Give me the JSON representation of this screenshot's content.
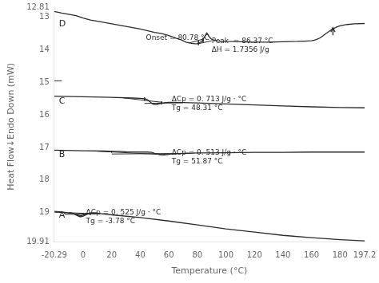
{
  "chart_data": {
    "type": "line",
    "xlabel": "Temperature (°C)",
    "ylabel": "Heat Flow↓Endo Down (mW)",
    "color": "#2a2a2a",
    "grid": false,
    "xlim": [
      -20.29,
      197.2
    ],
    "ylim": [
      19.91,
      12.81
    ],
    "xticks": [
      -20.29,
      0,
      20,
      40,
      60,
      80,
      100,
      120,
      140,
      160,
      180,
      197.2
    ],
    "yticks": [
      12.81,
      13,
      14,
      15,
      16,
      17,
      18,
      19,
      19.91
    ],
    "series": [
      {
        "x": [
          -20.29,
          -15,
          -5,
          0,
          5,
          10,
          20,
          30,
          40,
          50,
          55,
          60,
          65,
          68,
          70,
          72,
          74,
          76,
          78,
          80,
          82,
          83,
          84,
          85,
          86,
          86.5,
          87,
          88,
          90,
          95,
          100,
          110,
          120,
          130,
          140,
          150,
          155,
          160,
          162,
          164,
          166,
          168,
          170,
          172,
          174,
          176,
          178,
          180,
          185,
          190,
          197.2
        ],
        "values": [
          12.82,
          12.87,
          12.95,
          13.02,
          13.08,
          13.12,
          13.2,
          13.28,
          13.36,
          13.46,
          13.5,
          13.56,
          13.64,
          13.68,
          13.72,
          13.76,
          13.78,
          13.8,
          13.81,
          13.81,
          13.77,
          13.74,
          13.68,
          13.6,
          13.52,
          13.48,
          13.5,
          13.58,
          13.68,
          13.73,
          13.74,
          13.75,
          13.76,
          13.76,
          13.75,
          13.74,
          13.73,
          13.72,
          13.7,
          13.67,
          13.63,
          13.57,
          13.5,
          13.44,
          13.38,
          13.33,
          13.29,
          13.26,
          13.22,
          13.2,
          13.19
        ]
      },
      {
        "x": [
          -20.29,
          0,
          20,
          35,
          40,
          43,
          45,
          47,
          48,
          49,
          50,
          52,
          54,
          56,
          58,
          60,
          70,
          80,
          100,
          120,
          140,
          160,
          180,
          197.2
        ],
        "values": [
          15.42,
          15.44,
          15.46,
          15.48,
          15.49,
          15.5,
          15.53,
          15.6,
          15.64,
          15.67,
          15.68,
          15.67,
          15.65,
          15.63,
          15.62,
          15.61,
          15.62,
          15.63,
          15.66,
          15.69,
          15.72,
          15.75,
          15.77,
          15.78
        ]
      },
      {
        "x": [
          -20.29,
          0,
          15,
          20,
          25,
          30,
          40,
          45,
          48,
          50,
          52,
          54,
          56,
          58,
          60,
          62,
          65,
          70,
          80,
          100,
          120,
          140,
          160,
          180,
          197.2
        ],
        "values": [
          17.08,
          17.1,
          17.11,
          17.12,
          17.12,
          17.13,
          17.14,
          17.14,
          17.15,
          17.18,
          17.2,
          17.22,
          17.23,
          17.22,
          17.21,
          17.2,
          17.19,
          17.18,
          17.17,
          17.16,
          17.15,
          17.15,
          17.14,
          17.14,
          17.14
        ]
      },
      {
        "x": [
          -20.29,
          -15,
          -12,
          -10,
          -8,
          -6,
          -4,
          -2,
          0,
          2,
          4,
          6,
          8,
          10,
          12,
          20,
          40,
          60,
          80,
          100,
          120,
          140,
          160,
          180,
          197.2
        ],
        "values": [
          18.96,
          18.98,
          19.0,
          19.01,
          19.02,
          19.04,
          19.07,
          19.1,
          19.08,
          19.05,
          19.02,
          19.01,
          19.01,
          19.02,
          19.03,
          19.07,
          19.15,
          19.26,
          19.38,
          19.5,
          19.6,
          19.7,
          19.77,
          19.83,
          19.87
        ]
      },
      {
        "x": [
          -10,
          -8,
          -6,
          -4,
          -2,
          0,
          2,
          4,
          6,
          8,
          10
        ],
        "values": [
          19.01,
          19.02,
          19.05,
          19.1,
          19.13,
          19.11,
          19.07,
          19.03,
          19.01,
          19.01,
          19.02
        ]
      }
    ],
    "segments": [
      {
        "x": [
          80.78,
          80.78
        ],
        "values": [
          13.72,
          13.85
        ]
      },
      {
        "x": [
          84.0,
          84.0
        ],
        "values": [
          13.63,
          13.76
        ]
      },
      {
        "x": [
          74,
          84
        ],
        "values": [
          13.79,
          13.67
        ]
      },
      {
        "x": [
          80.78,
          90
        ],
        "values": [
          13.81,
          13.72
        ]
      },
      {
        "x": [
          43,
          43
        ],
        "values": [
          15.465,
          15.56
        ]
      },
      {
        "x": [
          55,
          55
        ],
        "values": [
          15.585,
          15.675
        ]
      },
      {
        "x": [
          28,
          55
        ],
        "values": [
          15.475,
          15.61
        ]
      },
      {
        "x": [
          43,
          70
        ],
        "values": [
          15.645,
          15.625
        ]
      },
      {
        "x": [
          20,
          20
        ],
        "values": [
          17.105,
          17.155
        ]
      },
      {
        "x": [
          57,
          57
        ],
        "values": [
          17.195,
          17.245
        ]
      },
      {
        "x": [
          10,
          57
        ],
        "values": [
          17.115,
          17.22
        ]
      },
      {
        "x": [
          20,
          75
        ],
        "values": [
          17.2,
          17.18
        ]
      },
      {
        "x": [
          -13,
          -13
        ],
        "values": [
          18.985,
          19.035
        ]
      },
      {
        "x": [
          5,
          5
        ],
        "values": [
          19.02,
          19.07
        ]
      },
      {
        "x": [
          -20,
          5
        ],
        "values": [
          18.99,
          19.03
        ]
      },
      {
        "x": [
          -13,
          12
        ],
        "values": [
          19.055,
          19.035
        ]
      },
      {
        "x": [
          -20.29,
          -15
        ],
        "values": [
          14.95,
          14.95
        ]
      }
    ],
    "arrows": [
      {
        "x": [
          175,
          175
        ],
        "values": [
          13.55,
          13.32
        ]
      }
    ],
    "annotations": [
      {
        "text": "D",
        "x": -17,
        "y": 13.08
      },
      {
        "text": "C",
        "x": -17,
        "y": 15.44
      },
      {
        "text": "B",
        "x": -17,
        "y": 17.08
      },
      {
        "text": "A",
        "x": -17,
        "y": 18.95
      },
      {
        "text": "Onset = 80.78 °C",
        "x": 44,
        "y": 13.52
      },
      {
        "text": "Peak  = 86.37 °C\nΔH = 1.7356 J/g",
        "x": 90,
        "y": 13.62
      },
      {
        "text": "ΔCp = 0. 713 J/g · °C\nTg = 48.31 °C",
        "x": 62,
        "y": 15.42
      },
      {
        "text": "ΔCp = 0. 513 J/g · °C\nTg = 51.87 °C",
        "x": 62,
        "y": 17.05
      },
      {
        "text": "ΔCp = 0. 525 J/g · °C\nTg = -3.78 °C",
        "x": 2,
        "y": 18.88
      }
    ]
  }
}
